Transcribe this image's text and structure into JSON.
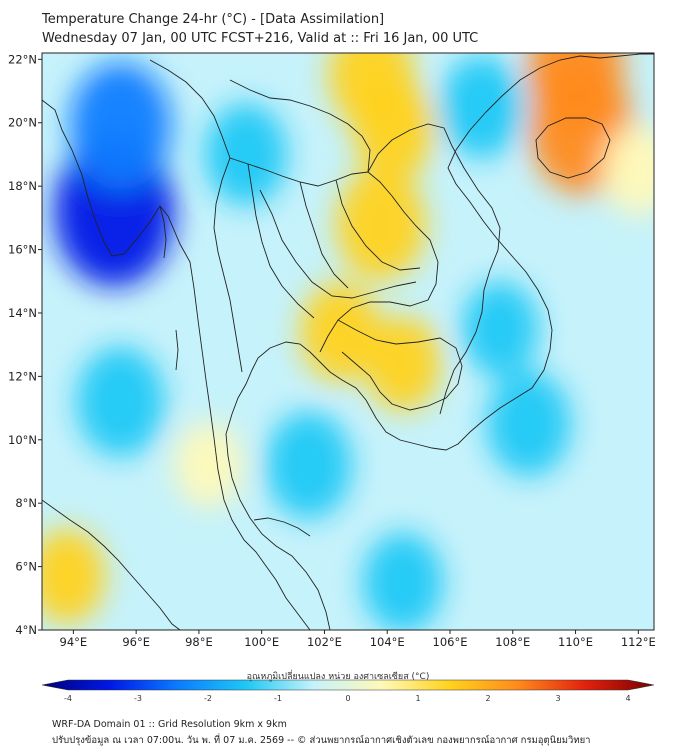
{
  "title": {
    "line1": "Temperature Change 24-hr (°C) - [Data Assimilation]",
    "line2": "Wednesday 07 Jan, 00 UTC FCST+216, Valid at :: Fri 16 Jan, 00 UTC"
  },
  "axes": {
    "lat_labels": [
      "22°N",
      "20°N",
      "18°N",
      "16°N",
      "14°N",
      "12°N",
      "10°N",
      "8°N",
      "6°N",
      "4°N"
    ],
    "lat_values": [
      22,
      20,
      18,
      16,
      14,
      12,
      10,
      8,
      6,
      4
    ],
    "lon_labels": [
      "94°E",
      "96°E",
      "98°E",
      "100°E",
      "102°E",
      "104°E",
      "106°E",
      "108°E",
      "110°E",
      "112°E"
    ],
    "lon_values": [
      94,
      96,
      98,
      100,
      102,
      104,
      106,
      108,
      110,
      112
    ],
    "lat_range": [
      4,
      22.2
    ],
    "lon_range": [
      93,
      112.5
    ]
  },
  "colorbar": {
    "label": "อุณหภูมิเปลี่ยนแปลง หน่วย องศาเซลเซียส (°C)",
    "ticks": [
      "-4",
      "-3",
      "-2",
      "-1",
      "0",
      "1",
      "2",
      "3",
      "4"
    ],
    "tick_values": [
      -4,
      -3,
      -2,
      -1,
      0,
      1,
      2,
      3,
      4
    ],
    "range": [
      -4,
      4
    ],
    "colors": [
      "#00007a",
      "#0018e6",
      "#0a7cff",
      "#1fc8f5",
      "#c6f2fb",
      "#fff9b8",
      "#ffd21c",
      "#ff8a1c",
      "#e0200e",
      "#7a0000"
    ]
  },
  "footer": {
    "line1": "WRF-DA Domain 01 :: Grid Resolution 9km x 9km",
    "line2": "ปรับปรุงข้อมูล ณ เวลา 07:00น. วัน พ. ที่ 07 ม.ค. 2569 -- © ส่วนพยากรณ์อากาศเชิงตัวเลข กองพยากรณ์อากาศ กรมอุตุนิยมวิทยา"
  },
  "field": {
    "unit": "°C",
    "background_value": -0.6,
    "anomalies": [
      {
        "name": "warm-northeast-thailand-laos",
        "lon": 103.8,
        "lat": 16.8,
        "value": 1.7
      },
      {
        "name": "warm-northern-laos",
        "lon": 104.2,
        "lat": 19.8,
        "value": 1.3
      },
      {
        "name": "warm-upper-laos",
        "lon": 103.5,
        "lat": 21.5,
        "value": 1.5
      },
      {
        "name": "warm-central-thailand",
        "lon": 102.5,
        "lat": 13.4,
        "value": 1.2
      },
      {
        "name": "warm-cambodia",
        "lon": 104.5,
        "lat": 12.4,
        "value": 1.0
      },
      {
        "name": "warm-hainan",
        "lon": 110.2,
        "lat": 19.8,
        "value": 2.4
      },
      {
        "name": "warm-gulf-tonkin",
        "lon": 110.0,
        "lat": 21.7,
        "value": 2.0
      },
      {
        "name": "warm-south-china",
        "lon": 112.0,
        "lat": 18.5,
        "value": 0.8
      },
      {
        "name": "warm-west-sumatra",
        "lon": 93.8,
        "lat": 5.7,
        "value": 1.0
      },
      {
        "name": "warm-andaman-east",
        "lon": 98.3,
        "lat": 9.2,
        "value": 0.6
      },
      {
        "name": "cold-myanmar-coast",
        "lon": 95.3,
        "lat": 17.2,
        "value": -3.2
      },
      {
        "name": "cold-myanmar-north",
        "lon": 95.5,
        "lat": 19.9,
        "value": -2.3
      },
      {
        "name": "cold-andaman-sea",
        "lon": 95.5,
        "lat": 11.2,
        "value": -1.6
      },
      {
        "name": "cold-gulf-thailand",
        "lon": 101.5,
        "lat": 9.2,
        "value": -1.5
      },
      {
        "name": "cold-south-china-sea",
        "lon": 108.5,
        "lat": 10.5,
        "value": -1.4
      },
      {
        "name": "cold-vietnam-north",
        "lon": 107.0,
        "lat": 20.5,
        "value": -1.3
      },
      {
        "name": "cold-malaysia",
        "lon": 104.5,
        "lat": 5.5,
        "value": -1.2
      },
      {
        "name": "cold-northern-thailand",
        "lon": 99.5,
        "lat": 19.0,
        "value": -1.3
      },
      {
        "name": "cold-vietnam-south",
        "lon": 107.6,
        "lat": 13.5,
        "value": -1.0
      }
    ]
  }
}
